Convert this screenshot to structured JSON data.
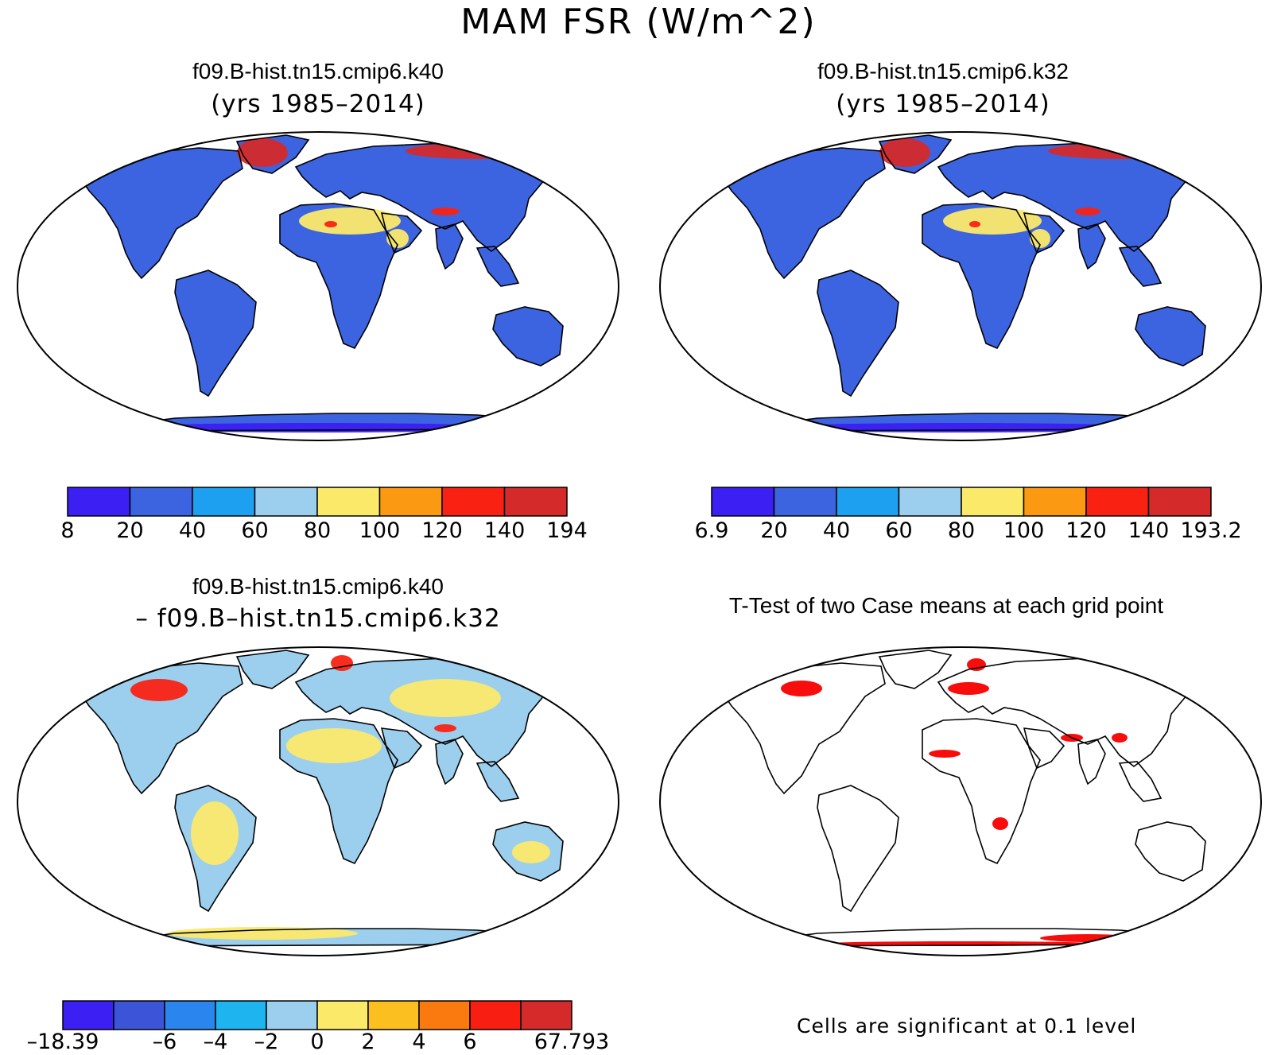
{
  "title": "MAM FSR (W/m^2)",
  "panels": {
    "top_left": {
      "title": "f09.B-hist.tn15.cmip6.k40",
      "subtitle": "(yrs 1985–2014)"
    },
    "top_right": {
      "title": "f09.B-hist.tn15.cmip6.k32",
      "subtitle": "(yrs 1985–2014)"
    },
    "bottom_left": {
      "title": "f09.B-hist.tn15.cmip6.k40",
      "subtitle": "– f09.B–hist.tn15.cmip6.k32"
    },
    "bottom_right": {
      "title": "T-Test of two Case means at each grid point",
      "note": "Cells are significant at 0.1 level"
    }
  },
  "colorbars": {
    "top_left": {
      "colors": [
        "#3c1ff2",
        "#3c64e0",
        "#1ea0f0",
        "#9ccfee",
        "#fbe96a",
        "#fb9a12",
        "#f92212",
        "#d42a2a"
      ],
      "labels": [
        "8",
        "20",
        "40",
        "60",
        "80",
        "100",
        "120",
        "140",
        "194"
      ]
    },
    "top_right": {
      "colors": [
        "#3c1ff2",
        "#3c64e0",
        "#1ea0f0",
        "#9ccfee",
        "#fbe96a",
        "#fb9a12",
        "#f92212",
        "#d42a2a"
      ],
      "labels": [
        "6.9",
        "20",
        "40",
        "60",
        "80",
        "100",
        "120",
        "140",
        "193.2"
      ]
    },
    "bottom_left": {
      "colors": [
        "#3c1ff2",
        "#3c55d8",
        "#2a86ee",
        "#1eb4f0",
        "#9ccfee",
        "#fbe96a",
        "#fbbf20",
        "#fb7a10",
        "#f91e12",
        "#d42a2a"
      ],
      "labels": [
        "–18.39",
        "",
        "–6",
        "–4",
        "–2",
        "0",
        "2",
        "4",
        "6",
        "",
        "67.793"
      ]
    }
  },
  "land_fill": {
    "top_left": "#3c64e0",
    "top_right": "#3c64e0",
    "bottom_left": "#9ccfee",
    "bottom_right": "#ffffff"
  },
  "highlight_colors": {
    "sahara": "#fbe96a",
    "hot": "#f92212",
    "arctic": "#d42a2a",
    "antarctica": "#3c1ff2",
    "diff_pos": "#fbe96a",
    "sig": "#f80000"
  }
}
